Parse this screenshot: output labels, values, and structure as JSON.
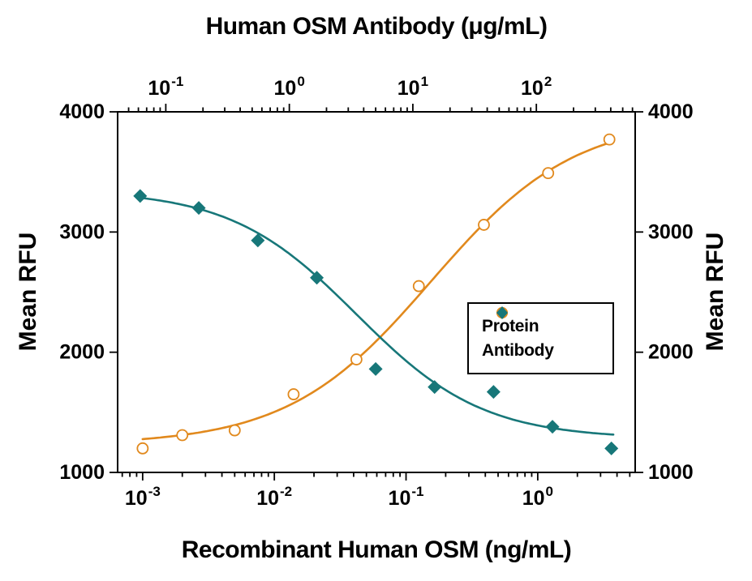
{
  "figure": {
    "top_title": "Human OSM Antibody (μg/mL)",
    "bottom_title": "Recombinant Human OSM (ng/mL)",
    "left_ylabel": "Mean RFU",
    "right_ylabel": "Mean RFU"
  },
  "legend": {
    "items": [
      {
        "label": "Protein",
        "marker": "open-circle",
        "color": "#E1891D"
      },
      {
        "label": "Antibody",
        "marker": "filled-diamond",
        "color": "#177779"
      }
    ]
  },
  "chart_data": {
    "type": "scatter",
    "title": "Human OSM Antibody (μg/mL)",
    "xlabel_bottom": "Recombinant Human OSM (ng/mL)",
    "xlabel_top": "Human OSM Antibody (μg/mL)",
    "ylabel": "Mean RFU",
    "grid": false,
    "legend_position": "inside-right",
    "axes": {
      "bottom": {
        "scale": "log",
        "min_exp": -3.19,
        "max_exp": 0.74,
        "tick_exps": [
          -3,
          -2,
          -1,
          0
        ],
        "unit": "ng/mL"
      },
      "top": {
        "scale": "log",
        "min_exp": -1.39,
        "max_exp": 2.8,
        "tick_exps": [
          -1,
          0,
          1,
          2
        ],
        "unit": "µg/mL"
      },
      "y": {
        "scale": "linear",
        "min": 1000,
        "max": 4000,
        "ticks": [
          1000,
          2000,
          3000,
          4000
        ]
      }
    },
    "series": [
      {
        "name": "Protein",
        "x_axis": "bottom",
        "color": "#E1891D",
        "marker": "open-circle",
        "x": [
          0.001,
          0.002,
          0.005,
          0.014,
          0.042,
          0.125,
          0.39,
          1.2,
          3.5
        ],
        "y": [
          1200,
          1310,
          1350,
          1650,
          1940,
          2550,
          3060,
          3490,
          3770
        ],
        "fit": {
          "type": "4PL",
          "y0": 1230,
          "yinf": 3950,
          "c": 0.155,
          "hill": 0.8,
          "x_range": [
            0.001,
            3.5
          ]
        }
      },
      {
        "name": "Antibody",
        "x_axis": "top",
        "color": "#177779",
        "marker": "filled-diamond",
        "x": [
          0.062,
          0.185,
          0.556,
          1.67,
          5,
          15,
          45,
          135,
          405
        ],
        "y": [
          3300,
          3200,
          2930,
          2620,
          1860,
          1710,
          1670,
          1380,
          1200
        ],
        "fit": {
          "type": "4PL",
          "y0": 3350,
          "yinf": 1280,
          "c": 3.5,
          "hill": 0.85,
          "x_range": [
            0.062,
            420
          ]
        }
      }
    ]
  }
}
